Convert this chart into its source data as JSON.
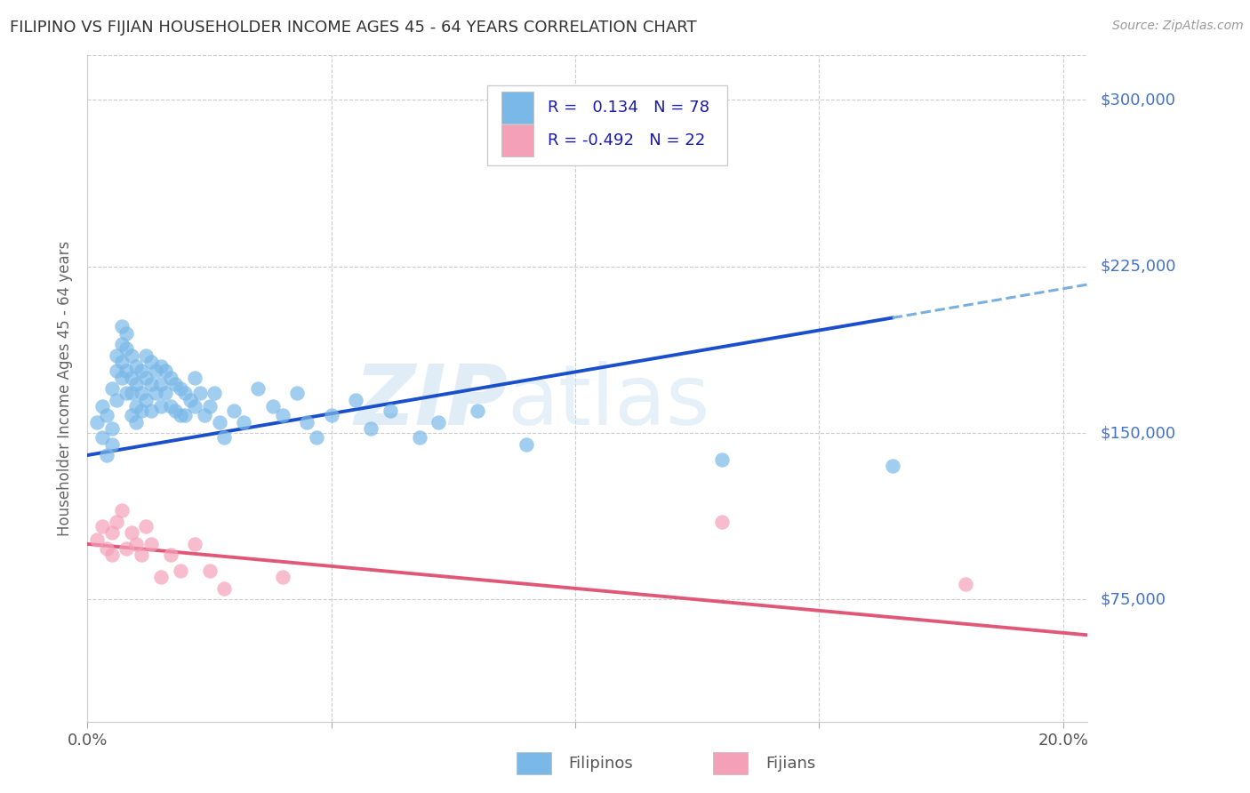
{
  "title": "FILIPINO VS FIJIAN HOUSEHOLDER INCOME AGES 45 - 64 YEARS CORRELATION CHART",
  "source": "Source: ZipAtlas.com",
  "ylabel": "Householder Income Ages 45 - 64 years",
  "xlim": [
    0.0,
    0.205
  ],
  "ylim": [
    20000,
    320000
  ],
  "ytick_vals": [
    75000,
    150000,
    225000,
    300000
  ],
  "ytick_labels": [
    "$75,000",
    "$150,000",
    "$225,000",
    "$300,000"
  ],
  "xtick_vals": [
    0.0,
    0.05,
    0.1,
    0.15,
    0.2
  ],
  "xtick_labels": [
    "0.0%",
    "",
    "",
    "",
    "20.0%"
  ],
  "filipino_color": "#7ab8e8",
  "fijian_color": "#f4a0b8",
  "trend_filipino_solid": "#1a4fcc",
  "trend_filipino_dash": "#7aaedd",
  "trend_fijian": "#e05878",
  "R_filipino": 0.134,
  "N_filipino": 78,
  "R_fijian": -0.492,
  "N_fijian": 22,
  "watermark": "ZIPatlas",
  "watermark_color": "#c8dff2",
  "legend_text_color": "#1a1aaa",
  "yaxis_label_color": "#4472c4",
  "filipino_x": [
    0.002,
    0.003,
    0.003,
    0.004,
    0.004,
    0.005,
    0.005,
    0.005,
    0.006,
    0.006,
    0.006,
    0.007,
    0.007,
    0.007,
    0.007,
    0.008,
    0.008,
    0.008,
    0.008,
    0.009,
    0.009,
    0.009,
    0.009,
    0.01,
    0.01,
    0.01,
    0.01,
    0.011,
    0.011,
    0.011,
    0.012,
    0.012,
    0.012,
    0.013,
    0.013,
    0.013,
    0.014,
    0.014,
    0.015,
    0.015,
    0.015,
    0.016,
    0.016,
    0.017,
    0.017,
    0.018,
    0.018,
    0.019,
    0.019,
    0.02,
    0.02,
    0.021,
    0.022,
    0.022,
    0.023,
    0.024,
    0.025,
    0.026,
    0.027,
    0.028,
    0.03,
    0.032,
    0.035,
    0.038,
    0.04,
    0.043,
    0.045,
    0.047,
    0.05,
    0.055,
    0.058,
    0.062,
    0.068,
    0.072,
    0.08,
    0.09,
    0.13,
    0.165
  ],
  "filipino_y": [
    155000,
    148000,
    162000,
    140000,
    158000,
    170000,
    152000,
    145000,
    178000,
    165000,
    185000,
    190000,
    198000,
    182000,
    175000,
    195000,
    188000,
    178000,
    168000,
    185000,
    175000,
    168000,
    158000,
    180000,
    172000,
    162000,
    155000,
    178000,
    168000,
    160000,
    185000,
    175000,
    165000,
    182000,
    172000,
    160000,
    178000,
    168000,
    180000,
    172000,
    162000,
    178000,
    168000,
    175000,
    162000,
    172000,
    160000,
    170000,
    158000,
    168000,
    158000,
    165000,
    175000,
    162000,
    168000,
    158000,
    162000,
    168000,
    155000,
    148000,
    160000,
    155000,
    170000,
    162000,
    158000,
    168000,
    155000,
    148000,
    158000,
    165000,
    152000,
    160000,
    148000,
    155000,
    160000,
    145000,
    138000,
    135000
  ],
  "fijian_x": [
    0.002,
    0.003,
    0.004,
    0.005,
    0.005,
    0.006,
    0.007,
    0.008,
    0.009,
    0.01,
    0.011,
    0.012,
    0.013,
    0.015,
    0.017,
    0.019,
    0.022,
    0.025,
    0.028,
    0.04,
    0.13,
    0.18
  ],
  "fijian_y": [
    102000,
    108000,
    98000,
    105000,
    95000,
    110000,
    115000,
    98000,
    105000,
    100000,
    95000,
    108000,
    100000,
    85000,
    95000,
    88000,
    100000,
    88000,
    80000,
    85000,
    110000,
    82000
  ]
}
